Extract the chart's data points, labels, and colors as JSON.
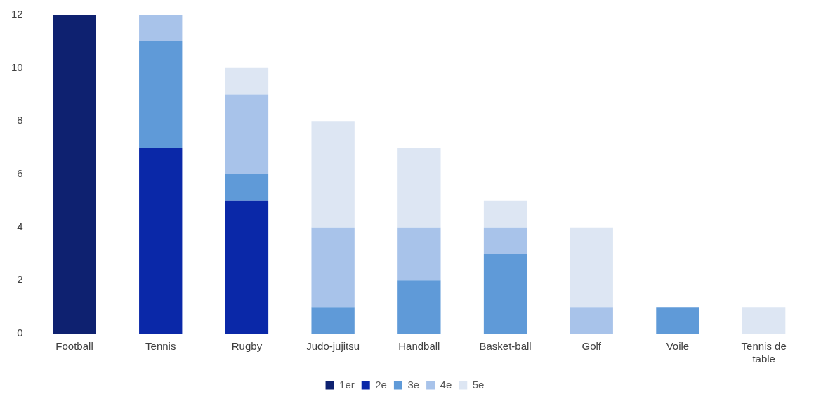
{
  "chart_data": {
    "type": "bar",
    "stacked": true,
    "categories": [
      "Football",
      "Tennis",
      "Rugby",
      "Judo-jujitsu",
      "Handball",
      "Basket-ball",
      "Golf",
      "Voile",
      "Tennis de table"
    ],
    "series": [
      {
        "name": "1er",
        "color": "#0e2170",
        "values": [
          12,
          0,
          0,
          0,
          0,
          0,
          0,
          0,
          0
        ]
      },
      {
        "name": "2e",
        "color": "#0a28a8",
        "values": [
          0,
          7,
          5,
          0,
          0,
          0,
          0,
          0,
          0
        ]
      },
      {
        "name": "3e",
        "color": "#5f9ad8",
        "values": [
          0,
          4,
          1,
          1,
          2,
          3,
          0,
          1,
          0
        ]
      },
      {
        "name": "4e",
        "color": "#a8c3ea",
        "values": [
          0,
          1,
          3,
          3,
          2,
          1,
          1,
          0,
          0
        ]
      },
      {
        "name": "5e",
        "color": "#dde6f3",
        "values": [
          0,
          0,
          1,
          4,
          3,
          1,
          3,
          0,
          1
        ]
      }
    ],
    "ylim": [
      0,
      12
    ],
    "yticks": [
      0,
      2,
      4,
      6,
      8,
      10,
      12
    ],
    "grid": false,
    "legend": "bottom"
  }
}
